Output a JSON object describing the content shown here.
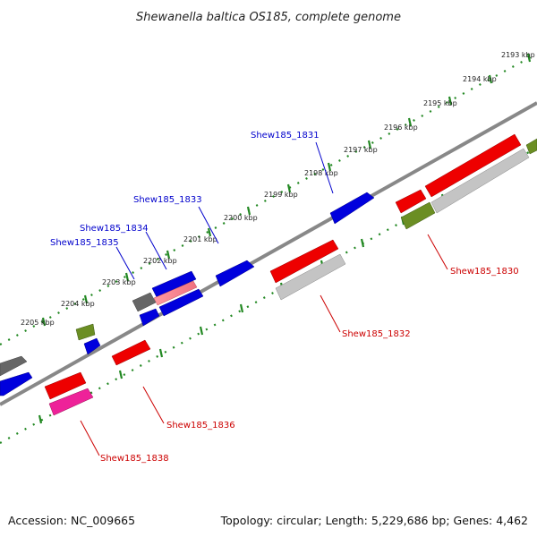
{
  "title": "Shewanella baltica OS185, complete genome",
  "footer": {
    "accession": "Accession: NC_009665",
    "summary": "Topology: circular; Length: 5,229,686 bp; Genes: 4,462"
  },
  "colors": {
    "axis": "#888888",
    "tick": "#228822",
    "blue": "#0000dd",
    "red": "#ee0000",
    "gray": "#777777",
    "silver": "#c4c4c4",
    "olive": "#6b8e23",
    "magenta": "#ee2299",
    "blue_label": "#0000cc",
    "red_label": "#cc0000"
  },
  "scale": {
    "unit": "kbp",
    "labels": [
      "2193 kbp",
      "2194 kbp",
      "2195 kbp",
      "2196 kbp",
      "2197 kbp",
      "2198 kbp",
      "2199 kbp",
      "2200 kbp",
      "2201 kbp",
      "2202 kbp",
      "2203 kbp",
      "2204 kbp",
      "2205 kbp"
    ]
  },
  "gene_labels": [
    {
      "name": "Shew185_1831",
      "color": "blue"
    },
    {
      "name": "Shew185_1833",
      "color": "blue"
    },
    {
      "name": "Shew185_1834",
      "color": "blue"
    },
    {
      "name": "Shew185_1835",
      "color": "blue"
    },
    {
      "name": "Shew185_1830",
      "color": "red"
    },
    {
      "name": "Shew185_1832",
      "color": "red"
    },
    {
      "name": "Shew185_1836",
      "color": "red"
    },
    {
      "name": "Shew185_1838",
      "color": "red"
    }
  ]
}
